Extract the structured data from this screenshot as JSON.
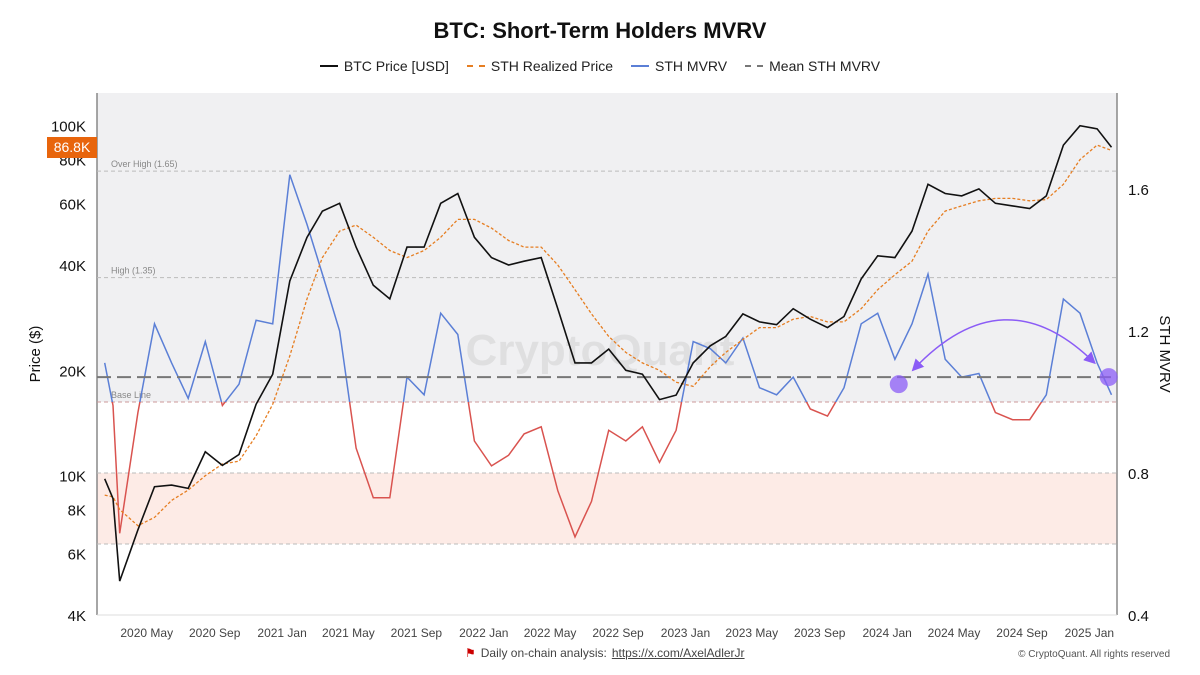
{
  "chart_data": {
    "type": "line",
    "title": "BTC: Short-Term Holders MVRV",
    "ylabel": "Price ($)",
    "y2label": "STH MVRV",
    "yscale": "log",
    "ylim": [
      4000,
      124000
    ],
    "y2lim": [
      0.4,
      1.87
    ],
    "xlim": [
      "2020-02-01",
      "2025-02-20"
    ],
    "yticks": [
      {
        "v": 4000,
        "l": "4K"
      },
      {
        "v": 6000,
        "l": "6K"
      },
      {
        "v": 8000,
        "l": "8K"
      },
      {
        "v": 10000,
        "l": "10K"
      },
      {
        "v": 20000,
        "l": "20K"
      },
      {
        "v": 40000,
        "l": "40K"
      },
      {
        "v": 60000,
        "l": "60K"
      },
      {
        "v": 80000,
        "l": "80K"
      },
      {
        "v": 100000,
        "l": "100K"
      }
    ],
    "y2ticks": [
      {
        "v": 0.4,
        "l": "0.4"
      },
      {
        "v": 0.8,
        "l": "0.8"
      },
      {
        "v": 1.2,
        "l": "1.2"
      },
      {
        "v": 1.6,
        "l": "1.6"
      }
    ],
    "xticks": [
      {
        "d": "2020-05-01",
        "l": "2020 May"
      },
      {
        "d": "2020-09-01",
        "l": "2020 Sep"
      },
      {
        "d": "2021-01-01",
        "l": "2021 Jan"
      },
      {
        "d": "2021-05-01",
        "l": "2021 May"
      },
      {
        "d": "2021-09-01",
        "l": "2021 Sep"
      },
      {
        "d": "2022-01-01",
        "l": "2022 Jan"
      },
      {
        "d": "2022-05-01",
        "l": "2022 May"
      },
      {
        "d": "2022-09-01",
        "l": "2022 Sep"
      },
      {
        "d": "2023-01-01",
        "l": "2023 Jan"
      },
      {
        "d": "2023-05-01",
        "l": "2023 May"
      },
      {
        "d": "2023-09-01",
        "l": "2023 Sep"
      },
      {
        "d": "2024-01-01",
        "l": "2024 Jan"
      },
      {
        "d": "2024-05-01",
        "l": "2024 May"
      },
      {
        "d": "2024-09-01",
        "l": "2024 Sep"
      },
      {
        "d": "2025-01-01",
        "l": "2025 Jan"
      }
    ],
    "legend": {
      "placement": "top",
      "items": [
        {
          "name": "BTC Price [USD]",
          "color": "#111111",
          "style": "solid"
        },
        {
          "name": "STH Realized Price",
          "color": "#e67e22",
          "style": "dashed"
        },
        {
          "name": "STH MVRV",
          "color": "#5b7fd6",
          "style": "solid"
        },
        {
          "name": "Mean STH MVRV",
          "color": "#777777",
          "style": "dashed"
        }
      ]
    },
    "colors": {
      "mvrv_below_base": "#d9534f",
      "plot_bg": "#f0f0f2",
      "low_band": "#fdebe6",
      "marker": "#8b5cf6"
    },
    "levels": [
      {
        "label": "Over High (1.65)",
        "value": 1.65
      },
      {
        "label": "High (1.35)",
        "value": 1.35
      },
      {
        "label": "Base Line",
        "value": 1.0
      }
    ],
    "mean_mvrv": 1.07,
    "low_band": [
      0.6,
      0.8
    ],
    "current_price_label": "86.8K",
    "markers": [
      {
        "date": "2024-01-22",
        "mvrv": 1.05
      },
      {
        "date": "2025-02-05",
        "mvrv": 1.07
      }
    ],
    "watermark": "CryptoQuant",
    "dates": [
      "2020-02-15",
      "2020-03-01",
      "2020-03-13",
      "2020-04-15",
      "2020-05-15",
      "2020-06-15",
      "2020-07-15",
      "2020-08-15",
      "2020-09-15",
      "2020-10-15",
      "2020-11-15",
      "2020-12-15",
      "2021-01-15",
      "2021-02-15",
      "2021-03-15",
      "2021-04-15",
      "2021-05-15",
      "2021-06-15",
      "2021-07-15",
      "2021-08-15",
      "2021-09-15",
      "2021-10-15",
      "2021-11-15",
      "2021-12-15",
      "2022-01-15",
      "2022-02-15",
      "2022-03-15",
      "2022-04-15",
      "2022-05-15",
      "2022-06-15",
      "2022-07-15",
      "2022-08-15",
      "2022-09-15",
      "2022-10-15",
      "2022-11-15",
      "2022-12-15",
      "2023-01-15",
      "2023-02-15",
      "2023-03-15",
      "2023-04-15",
      "2023-05-15",
      "2023-06-15",
      "2023-07-15",
      "2023-08-15",
      "2023-09-15",
      "2023-10-15",
      "2023-11-15",
      "2023-12-15",
      "2024-01-15",
      "2024-02-15",
      "2024-03-15",
      "2024-04-15",
      "2024-05-15",
      "2024-06-15",
      "2024-07-15",
      "2024-08-15",
      "2024-09-15",
      "2024-10-15",
      "2024-11-15",
      "2024-12-15",
      "2025-01-15",
      "2025-02-10"
    ],
    "series": [
      {
        "name": "BTC Price [USD]",
        "axis": "left",
        "values": [
          9800,
          8600,
          5000,
          7000,
          9300,
          9400,
          9200,
          11700,
          10700,
          11500,
          16000,
          19500,
          36000,
          48000,
          57000,
          60000,
          45000,
          35000,
          32000,
          45000,
          45000,
          60000,
          64000,
          48000,
          42000,
          40000,
          41000,
          42000,
          30000,
          21000,
          21000,
          23000,
          20000,
          19500,
          16500,
          17000,
          21000,
          23500,
          25000,
          29000,
          27500,
          27000,
          30000,
          28000,
          26500,
          28500,
          36500,
          42500,
          42000,
          50000,
          68000,
          64000,
          63000,
          66000,
          60000,
          59000,
          58000,
          63000,
          88000,
          100000,
          98000,
          86800
        ]
      },
      {
        "name": "STH Realized Price",
        "axis": "left",
        "values": [
          8800,
          8700,
          8000,
          7200,
          7600,
          8500,
          9100,
          10000,
          10800,
          11000,
          13000,
          16000,
          22000,
          32000,
          42000,
          50000,
          52000,
          48000,
          44000,
          42000,
          44000,
          48000,
          54000,
          54000,
          51000,
          47000,
          45000,
          45000,
          40000,
          34000,
          29000,
          25000,
          22500,
          21000,
          20000,
          18500,
          18000,
          20500,
          22500,
          24500,
          26500,
          26500,
          28000,
          28500,
          27500,
          27500,
          30000,
          34000,
          37500,
          41000,
          50000,
          57000,
          59000,
          61000,
          62000,
          62000,
          61000,
          61500,
          68000,
          80000,
          88000,
          85000
        ]
      },
      {
        "name": "STH MVRV",
        "axis": "right",
        "values": [
          1.11,
          0.99,
          0.63,
          0.97,
          1.22,
          1.11,
          1.01,
          1.17,
          0.99,
          1.05,
          1.23,
          1.22,
          1.64,
          1.5,
          1.36,
          1.2,
          0.87,
          0.73,
          0.73,
          1.07,
          1.02,
          1.25,
          1.19,
          0.89,
          0.82,
          0.85,
          0.91,
          0.93,
          0.75,
          0.62,
          0.72,
          0.92,
          0.89,
          0.93,
          0.83,
          0.92,
          1.17,
          1.15,
          1.11,
          1.18,
          1.04,
          1.02,
          1.07,
          0.98,
          0.96,
          1.04,
          1.22,
          1.25,
          1.12,
          1.22,
          1.36,
          1.12,
          1.07,
          1.08,
          0.97,
          0.95,
          0.95,
          1.02,
          1.29,
          1.25,
          1.11,
          1.02
        ]
      }
    ]
  },
  "footer": {
    "analysis_label": "Daily on-chain analysis:",
    "analysis_link": "https://x.com/AxelAdlerJr",
    "copyright": "© CryptoQuant. All rights reserved"
  }
}
